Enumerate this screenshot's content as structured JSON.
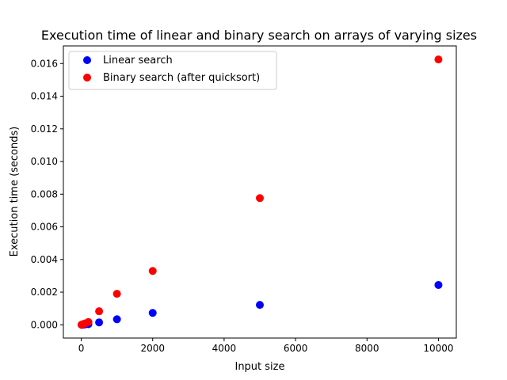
{
  "chart_data": {
    "type": "scatter",
    "title": "Execution time of linear and binary search on arrays of varying sizes",
    "xlabel": "Input size",
    "ylabel": "Execution time (seconds)",
    "xlim": [
      -500,
      10500
    ],
    "ylim": [
      -0.00081,
      0.01708
    ],
    "x_ticks": [
      0,
      2000,
      4000,
      6000,
      8000,
      10000
    ],
    "x_tick_labels": [
      "0",
      "2000",
      "4000",
      "6000",
      "8000",
      "10000"
    ],
    "y_ticks": [
      0.0,
      0.002,
      0.004,
      0.006,
      0.008,
      0.01,
      0.012,
      0.014,
      0.016
    ],
    "y_tick_labels": [
      "0.000",
      "0.002",
      "0.004",
      "0.006",
      "0.008",
      "0.010",
      "0.012",
      "0.014",
      "0.016"
    ],
    "grid": false,
    "legend_position": "top-left",
    "series": [
      {
        "name": "Linear search",
        "color": "#0000ff",
        "points": [
          {
            "x": 10,
            "y": 3e-06
          },
          {
            "x": 20,
            "y": 5e-06
          },
          {
            "x": 50,
            "y": 9e-06
          },
          {
            "x": 100,
            "y": 2e-05
          },
          {
            "x": 200,
            "y": 4e-05
          },
          {
            "x": 500,
            "y": 0.00015
          },
          {
            "x": 1000,
            "y": 0.00034
          },
          {
            "x": 2000,
            "y": 0.00073
          },
          {
            "x": 5000,
            "y": 0.00122
          },
          {
            "x": 10000,
            "y": 0.00244
          }
        ]
      },
      {
        "name": "Binary search (after quicksort)",
        "color": "#ff0000",
        "points": [
          {
            "x": 10,
            "y": 8e-06
          },
          {
            "x": 20,
            "y": 1.5e-05
          },
          {
            "x": 50,
            "y": 4e-05
          },
          {
            "x": 100,
            "y": 8e-05
          },
          {
            "x": 200,
            "y": 0.00017
          },
          {
            "x": 500,
            "y": 0.00083
          },
          {
            "x": 1000,
            "y": 0.0019
          },
          {
            "x": 2000,
            "y": 0.0033
          },
          {
            "x": 5000,
            "y": 0.00776
          },
          {
            "x": 10000,
            "y": 0.01625
          }
        ]
      }
    ]
  }
}
